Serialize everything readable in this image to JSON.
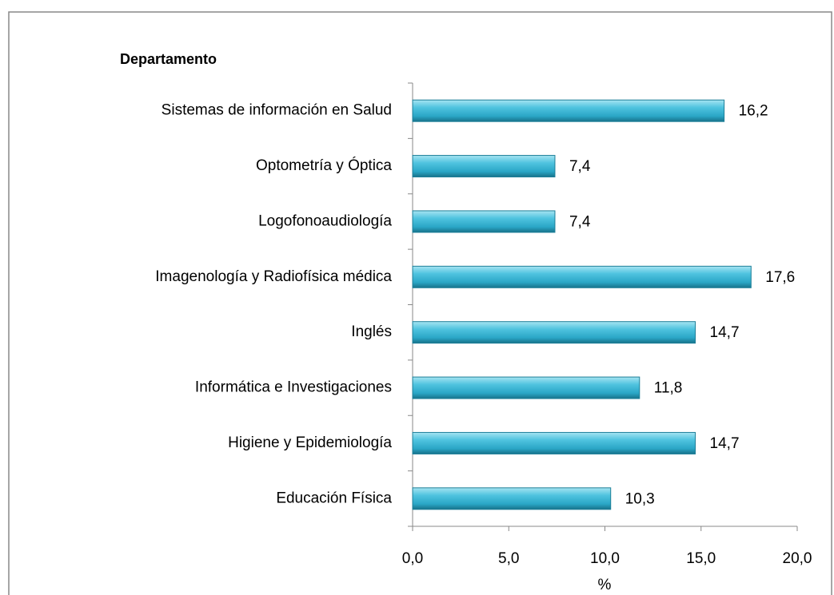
{
  "chart_data": {
    "type": "bar",
    "orientation": "horizontal",
    "title": "Departamento",
    "xlabel": "%",
    "categories": [
      "Sistemas de información en Salud",
      "Optometría y Óptica",
      "Logofonoaudiología",
      "Imagenología y Radiofísica médica",
      "Inglés",
      "Informática e Investigaciones",
      "Higiene y Epidemiología",
      "Educación Física"
    ],
    "values": [
      16.2,
      7.4,
      7.4,
      17.6,
      14.7,
      11.8,
      14.7,
      10.3
    ],
    "value_labels": [
      "16,2",
      "7,4",
      "7,4",
      "17,6",
      "14,7",
      "11,8",
      "14,7",
      "10,3"
    ],
    "color": "#31b3d3",
    "xlim": [
      0,
      20
    ],
    "xticks": [
      {
        "value": 0,
        "label": "0,0"
      },
      {
        "value": 5,
        "label": "5,0"
      },
      {
        "value": 10,
        "label": "10,0"
      },
      {
        "value": 15,
        "label": "15,0"
      },
      {
        "value": 20,
        "label": "20,0"
      }
    ],
    "grid": false
  }
}
